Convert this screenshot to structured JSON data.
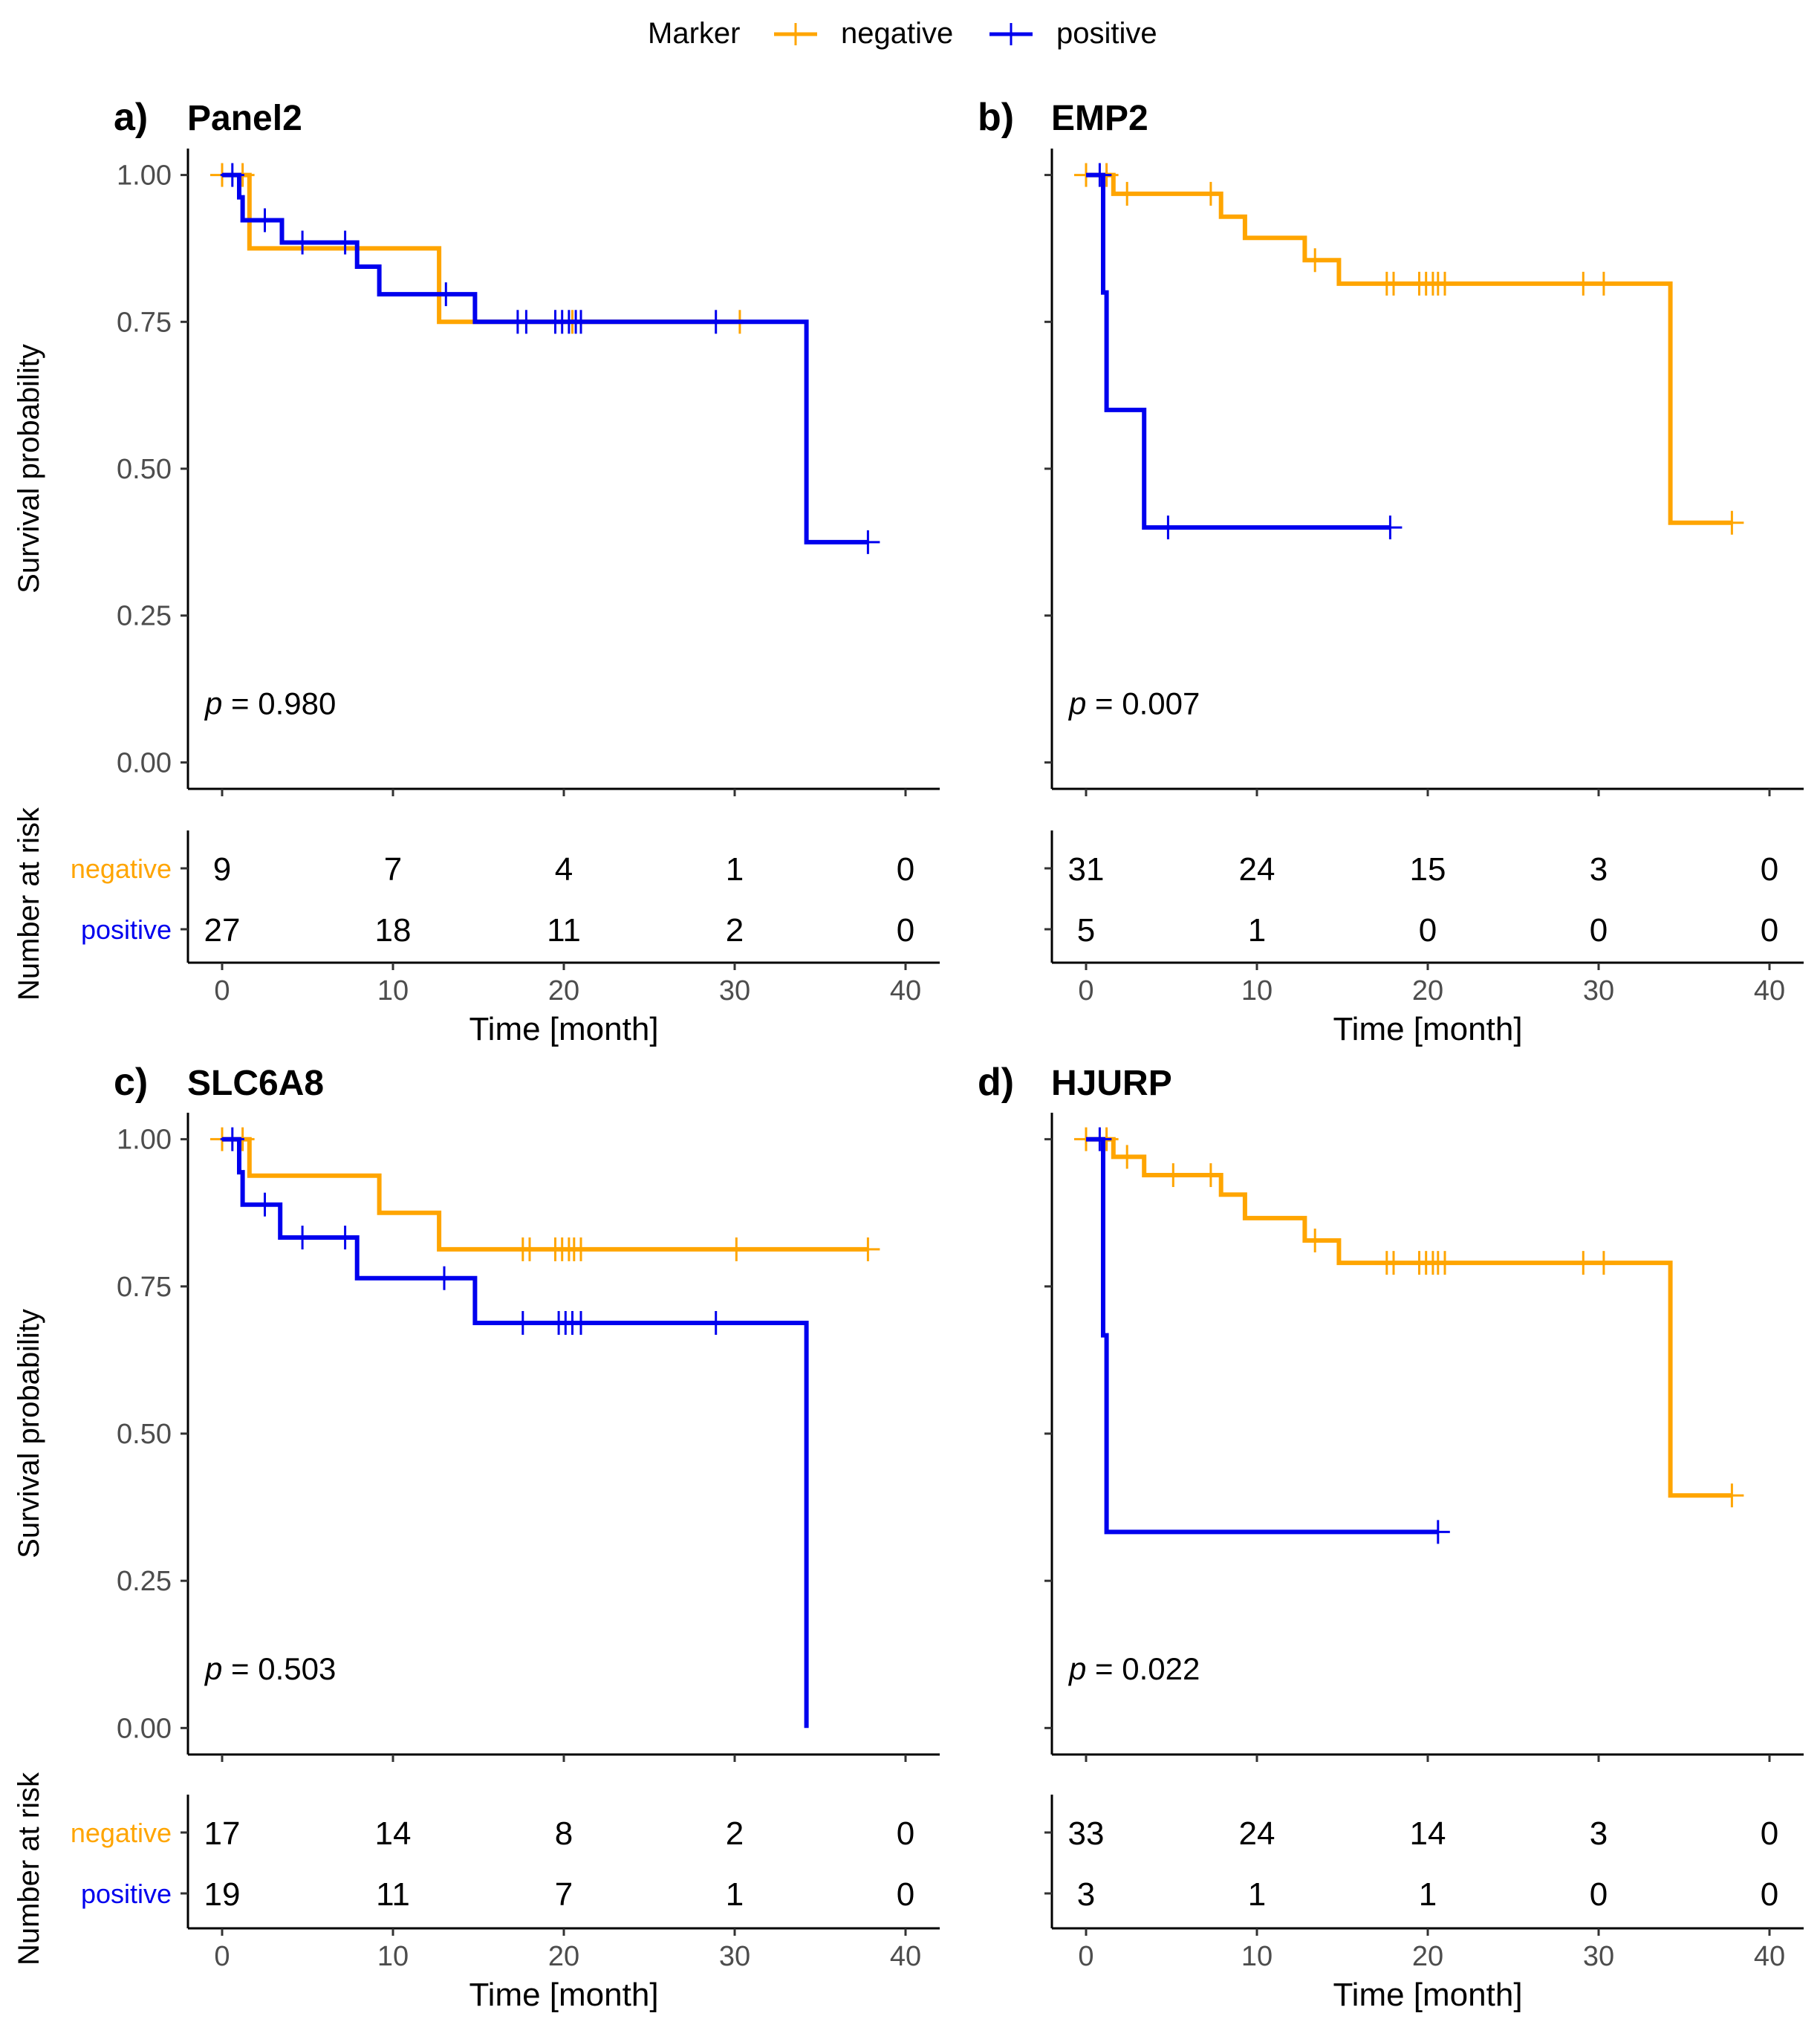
{
  "legend": {
    "title": "Marker",
    "entries": [
      {
        "label": "negative",
        "color": "#FFA500"
      },
      {
        "label": "positive",
        "color": "#0000EE"
      }
    ]
  },
  "shared": {
    "ylabel": "Survival probability",
    "risk_ylabel": "Number at risk",
    "xlabel": "Time [month]",
    "x_ticks": [
      0,
      10,
      20,
      30,
      40
    ],
    "y_ticks": [
      "0.00",
      "0.25",
      "0.50",
      "0.75",
      "1.00"
    ],
    "xlim": [
      -2,
      42
    ],
    "ylim": [
      -0.045,
      1.045
    ],
    "risk_rows": [
      "negative",
      "positive"
    ]
  },
  "chart_data": [
    {
      "type": "line",
      "subtype": "kaplan-meier",
      "tag": "a)",
      "title": "Panel2",
      "p_text": "= 0.980",
      "series": [
        {
          "name": "negative",
          "color": "#FFA500",
          "steps": [
            [
              0,
              1.0
            ],
            [
              1.6,
              0.875
            ],
            [
              12.7,
              0.75
            ],
            [
              30.5,
              0.75
            ]
          ],
          "censor": [
            [
              0,
              1.0
            ],
            [
              1.2,
              1.0
            ],
            [
              20.5,
              0.75
            ],
            [
              30.3,
              0.75
            ]
          ]
        },
        {
          "name": "positive",
          "color": "#0000EE",
          "steps": [
            [
              0,
              1.0
            ],
            [
              1,
              0.962
            ],
            [
              1.2,
              0.923
            ],
            [
              2.6,
              0.923
            ],
            [
              3.5,
              0.885
            ],
            [
              7.9,
              0.844
            ],
            [
              9.2,
              0.797
            ],
            [
              14.8,
              0.75
            ],
            [
              34.2,
              0.375
            ],
            [
              37.8,
              0.375
            ]
          ],
          "censor": [
            [
              0.6,
              1.0
            ],
            [
              2.5,
              0.923
            ],
            [
              4.7,
              0.885
            ],
            [
              7.2,
              0.885
            ],
            [
              13.1,
              0.797
            ],
            [
              17.3,
              0.75
            ],
            [
              17.8,
              0.75
            ],
            [
              19.5,
              0.75
            ],
            [
              19.9,
              0.75
            ],
            [
              20.3,
              0.75
            ],
            [
              20.7,
              0.75
            ],
            [
              21,
              0.75
            ],
            [
              28.9,
              0.75
            ],
            [
              37.8,
              0.375
            ]
          ]
        }
      ],
      "risk": {
        "negative": [
          9,
          7,
          4,
          1,
          0
        ],
        "positive": [
          27,
          18,
          11,
          2,
          0
        ]
      }
    },
    {
      "type": "line",
      "subtype": "kaplan-meier",
      "tag": "b)",
      "title": "EMP2",
      "p_text": "= 0.007",
      "series": [
        {
          "name": "negative",
          "color": "#FFA500",
          "steps": [
            [
              0,
              1.0
            ],
            [
              1.6,
              0.968
            ],
            [
              7.9,
              0.929
            ],
            [
              9.3,
              0.893
            ],
            [
              12.8,
              0.855
            ],
            [
              14.8,
              0.815
            ],
            [
              34.2,
              0.408
            ],
            [
              37.8,
              0.408
            ]
          ],
          "censor": [
            [
              0,
              1.0
            ],
            [
              1.2,
              1.0
            ],
            [
              2.4,
              0.968
            ],
            [
              7.3,
              0.968
            ],
            [
              13.4,
              0.855
            ],
            [
              17.6,
              0.815
            ],
            [
              18,
              0.815
            ],
            [
              19.5,
              0.815
            ],
            [
              19.9,
              0.815
            ],
            [
              20.3,
              0.815
            ],
            [
              20.6,
              0.815
            ],
            [
              21,
              0.815
            ],
            [
              29.1,
              0.815
            ],
            [
              30.3,
              0.815
            ],
            [
              37.8,
              0.408
            ]
          ]
        },
        {
          "name": "positive",
          "color": "#0000EE",
          "steps": [
            [
              0,
              1.0
            ],
            [
              1,
              0.8
            ],
            [
              1.2,
              0.6
            ],
            [
              3.4,
              0.4
            ],
            [
              17.8,
              0.4
            ]
          ],
          "censor": [
            [
              0.8,
              1.0
            ],
            [
              4.8,
              0.4
            ],
            [
              17.8,
              0.4
            ]
          ]
        }
      ],
      "risk": {
        "negative": [
          31,
          24,
          15,
          3,
          0
        ],
        "positive": [
          5,
          1,
          0,
          0,
          0
        ]
      }
    },
    {
      "type": "line",
      "subtype": "kaplan-meier",
      "tag": "c)",
      "title": "SLC6A8",
      "p_text": "= 0.503",
      "series": [
        {
          "name": "negative",
          "color": "#FFA500",
          "steps": [
            [
              0,
              1.0
            ],
            [
              1.6,
              0.938
            ],
            [
              9.2,
              0.875
            ],
            [
              12.7,
              0.813
            ],
            [
              37.8,
              0.813
            ]
          ],
          "censor": [
            [
              0,
              1.0
            ],
            [
              1.2,
              1.0
            ],
            [
              17.6,
              0.813
            ],
            [
              18,
              0.813
            ],
            [
              19.5,
              0.813
            ],
            [
              19.9,
              0.813
            ],
            [
              20.3,
              0.813
            ],
            [
              20.6,
              0.813
            ],
            [
              21,
              0.813
            ],
            [
              30.1,
              0.813
            ],
            [
              37.8,
              0.813
            ]
          ]
        },
        {
          "name": "positive",
          "color": "#0000EE",
          "steps": [
            [
              0,
              1.0
            ],
            [
              1,
              0.944
            ],
            [
              1.2,
              0.889
            ],
            [
              3.4,
              0.833
            ],
            [
              7.9,
              0.764
            ],
            [
              14.8,
              0.688
            ],
            [
              34.2,
              0.0
            ]
          ],
          "censor": [
            [
              0.6,
              1.0
            ],
            [
              2.5,
              0.889
            ],
            [
              4.7,
              0.833
            ],
            [
              7.2,
              0.833
            ],
            [
              13,
              0.764
            ],
            [
              17.6,
              0.688
            ],
            [
              19.7,
              0.688
            ],
            [
              20.1,
              0.688
            ],
            [
              20.5,
              0.688
            ],
            [
              21,
              0.688
            ],
            [
              28.9,
              0.688
            ]
          ]
        }
      ],
      "risk": {
        "negative": [
          17,
          14,
          8,
          2,
          0
        ],
        "positive": [
          19,
          11,
          7,
          1,
          0
        ]
      }
    },
    {
      "type": "line",
      "subtype": "kaplan-meier",
      "tag": "d)",
      "title": "HJURP",
      "p_text": "= 0.022",
      "series": [
        {
          "name": "negative",
          "color": "#FFA500",
          "steps": [
            [
              0,
              1.0
            ],
            [
              1.6,
              0.97
            ],
            [
              3.4,
              0.939
            ],
            [
              7.9,
              0.906
            ],
            [
              9.3,
              0.866
            ],
            [
              12.8,
              0.828
            ],
            [
              14.8,
              0.79
            ],
            [
              34.2,
              0.395
            ],
            [
              37.8,
              0.395
            ]
          ],
          "censor": [
            [
              0,
              1.0
            ],
            [
              1.2,
              1.0
            ],
            [
              2.4,
              0.97
            ],
            [
              5.1,
              0.939
            ],
            [
              7.3,
              0.939
            ],
            [
              13.4,
              0.828
            ],
            [
              17.6,
              0.79
            ],
            [
              18,
              0.79
            ],
            [
              19.5,
              0.79
            ],
            [
              19.9,
              0.79
            ],
            [
              20.3,
              0.79
            ],
            [
              20.6,
              0.79
            ],
            [
              21,
              0.79
            ],
            [
              29.1,
              0.79
            ],
            [
              30.3,
              0.79
            ],
            [
              37.8,
              0.395
            ]
          ]
        },
        {
          "name": "positive",
          "color": "#0000EE",
          "steps": [
            [
              0,
              1.0
            ],
            [
              1,
              0.667
            ],
            [
              1.2,
              0.333
            ],
            [
              20.6,
              0.333
            ]
          ],
          "censor": [
            [
              0.8,
              1.0
            ],
            [
              20.6,
              0.333
            ]
          ]
        }
      ],
      "risk": {
        "negative": [
          33,
          24,
          14,
          3,
          0
        ],
        "positive": [
          3,
          1,
          1,
          0,
          0
        ]
      }
    }
  ]
}
